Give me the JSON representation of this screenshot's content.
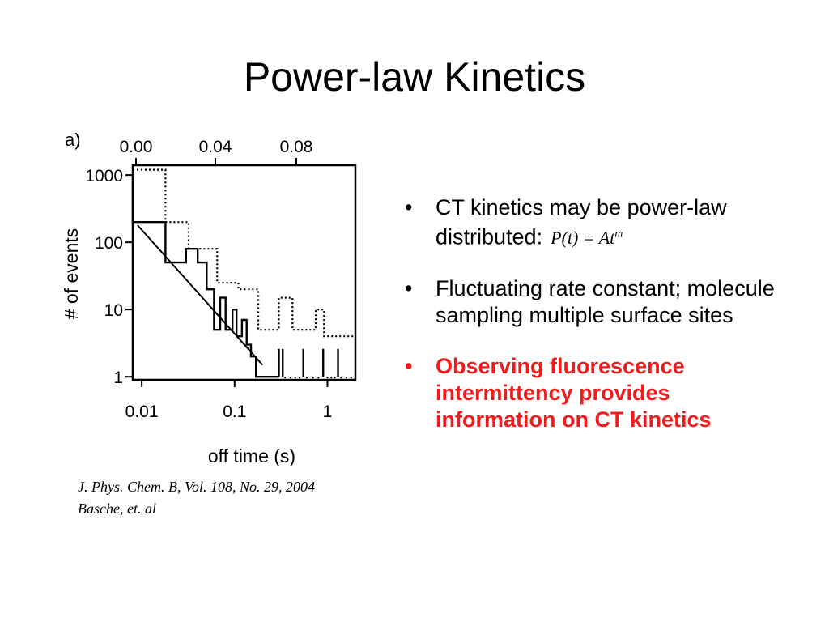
{
  "slide": {
    "title": "Power-law Kinetics"
  },
  "figure": {
    "panel_label": "a)",
    "citation_line1": "J. Phys. Chem. B, Vol. 108, No. 29, 2004",
    "citation_line2": "Basche, et. al"
  },
  "bullets": [
    {
      "text": "CT kinetics may be power-law distributed:",
      "formula_base": "P(t) = At",
      "formula_exp": "m"
    },
    {
      "text": "Fluctuating rate constant; molecule sampling multiple surface sites"
    },
    {
      "text": "Observing fluorescence intermittency provides information on CT kinetics",
      "color": "#ee1c1c",
      "bold": true
    }
  ],
  "chart_data": {
    "type": "line",
    "xlabel": "off time (s)",
    "ylabel": "# of events",
    "x_scale": "log",
    "y_scale": "log",
    "xlim": [
      0.008,
      2
    ],
    "ylim": [
      0.9,
      1400
    ],
    "x_ticks": [
      {
        "value": 0.01,
        "label": "0.01"
      },
      {
        "value": 0.1,
        "label": "0.1"
      },
      {
        "value": 1,
        "label": "1"
      }
    ],
    "y_ticks": [
      {
        "value": 1,
        "label": "1"
      },
      {
        "value": 10,
        "label": "10"
      },
      {
        "value": 100,
        "label": "100"
      },
      {
        "value": 1000,
        "label": "1000"
      }
    ],
    "top_axis_ticks": [
      "0.00",
      "0.04",
      "0.08"
    ],
    "series": [
      {
        "style": "solid-step",
        "points": [
          [
            0.008,
            1000
          ],
          [
            0.008,
            200
          ],
          [
            0.018,
            200
          ],
          [
            0.018,
            50
          ],
          [
            0.03,
            50
          ],
          [
            0.03,
            80
          ],
          [
            0.04,
            80
          ],
          [
            0.04,
            50
          ],
          [
            0.05,
            50
          ],
          [
            0.05,
            20
          ],
          [
            0.06,
            20
          ],
          [
            0.06,
            5
          ],
          [
            0.07,
            5
          ],
          [
            0.07,
            15
          ],
          [
            0.08,
            15
          ],
          [
            0.08,
            5
          ],
          [
            0.095,
            5
          ],
          [
            0.095,
            10
          ],
          [
            0.105,
            10
          ],
          [
            0.105,
            4
          ],
          [
            0.12,
            4
          ],
          [
            0.12,
            7
          ],
          [
            0.135,
            7
          ],
          [
            0.135,
            3
          ],
          [
            0.15,
            3
          ],
          [
            0.15,
            2
          ],
          [
            0.17,
            2
          ],
          [
            0.17,
            1
          ],
          [
            0.3,
            1
          ]
        ]
      },
      {
        "style": "dotted-step",
        "points": [
          [
            0.008,
            1200
          ],
          [
            0.018,
            1200
          ],
          [
            0.018,
            200
          ],
          [
            0.032,
            200
          ],
          [
            0.032,
            80
          ],
          [
            0.065,
            80
          ],
          [
            0.065,
            25
          ],
          [
            0.11,
            25
          ],
          [
            0.11,
            20
          ],
          [
            0.18,
            20
          ],
          [
            0.18,
            5
          ],
          [
            0.3,
            5
          ],
          [
            0.3,
            15
          ],
          [
            0.42,
            15
          ],
          [
            0.42,
            5
          ],
          [
            0.75,
            5
          ],
          [
            0.75,
            10
          ],
          [
            0.92,
            10
          ],
          [
            0.92,
            4
          ],
          [
            1.5,
            4
          ],
          [
            1.5,
            4
          ],
          [
            2,
            4
          ]
        ]
      },
      {
        "style": "fit-line",
        "points": [
          [
            0.009,
            180
          ],
          [
            0.2,
            1.5
          ]
        ]
      }
    ],
    "spikes": [
      0.3,
      0.33,
      0.55,
      0.9,
      1.3
    ],
    "tail_dots": [
      0.35,
      0.4,
      0.45,
      0.5,
      0.6,
      0.7,
      0.8,
      1.0,
      1.1,
      1.2,
      1.4,
      1.6,
      1.8
    ]
  }
}
